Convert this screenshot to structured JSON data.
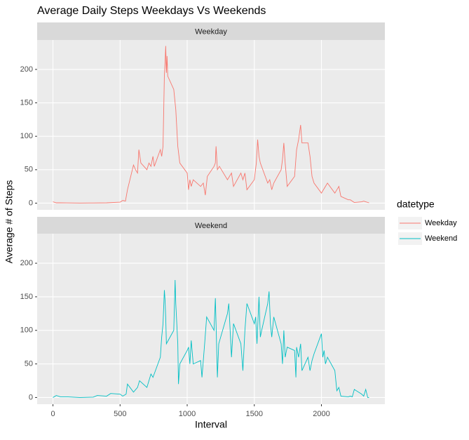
{
  "chart_data": {
    "type": "line",
    "title": "Average Daily Steps Weekdays Vs Weekends",
    "x_label": "Interval",
    "y_label": "Average # of Steps",
    "legend_title": "datetype",
    "xlim": [
      -117.75,
      2472.75
    ],
    "xticks": [
      0,
      500,
      1000,
      1500,
      2000
    ],
    "ylim": [
      -10,
      244
    ],
    "yticks": [
      0,
      50,
      100,
      150,
      200
    ],
    "grid": true,
    "facet": "series",
    "series": [
      {
        "name": "Weekday",
        "color": "#F8766D",
        "x": [
          0,
          25,
          55,
          100,
          200,
          300,
          400,
          500,
          520,
          540,
          555,
          600,
          615,
          630,
          640,
          655,
          700,
          715,
          730,
          745,
          755,
          800,
          810,
          820,
          830,
          835,
          840,
          845,
          850,
          855,
          900,
          915,
          930,
          945,
          1000,
          1010,
          1020,
          1030,
          1045,
          1100,
          1120,
          1135,
          1150,
          1200,
          1210,
          1215,
          1225,
          1240,
          1300,
          1315,
          1330,
          1345,
          1400,
          1415,
          1430,
          1445,
          1500,
          1515,
          1525,
          1535,
          1545,
          1600,
          1615,
          1630,
          1645,
          1700,
          1710,
          1720,
          1730,
          1745,
          1800,
          1815,
          1830,
          1845,
          1855,
          1900,
          1915,
          1930,
          1945,
          2000,
          2015,
          2030,
          2045,
          2100,
          2115,
          2130,
          2145,
          2200,
          2215,
          2230,
          2245,
          2300,
          2315,
          2330,
          2355
        ],
        "values": [
          2,
          0.5,
          0.5,
          0.4,
          0.2,
          0.3,
          0.5,
          1.5,
          4,
          3,
          20,
          57,
          50,
          45,
          80,
          60,
          50,
          60,
          55,
          70,
          55,
          80,
          70,
          85,
          190,
          210,
          235,
          195,
          220,
          190,
          170,
          140,
          85,
          60,
          45,
          20,
          35,
          25,
          35,
          25,
          30,
          12,
          40,
          55,
          60,
          85,
          50,
          55,
          35,
          40,
          45,
          25,
          45,
          35,
          45,
          20,
          35,
          60,
          95,
          70,
          60,
          30,
          35,
          20,
          30,
          50,
          65,
          90,
          60,
          25,
          40,
          80,
          95,
          117,
          90,
          90,
          70,
          40,
          30,
          15,
          20,
          25,
          30,
          15,
          20,
          25,
          10,
          5,
          5,
          3,
          1,
          2,
          3,
          2,
          0.5
        ]
      },
      {
        "name": "Weekend",
        "color": "#00BFC4",
        "x": [
          0,
          25,
          55,
          100,
          200,
          300,
          330,
          400,
          430,
          500,
          520,
          545,
          555,
          600,
          630,
          645,
          700,
          715,
          730,
          745,
          800,
          810,
          820,
          830,
          835,
          840,
          845,
          900,
          910,
          915,
          930,
          935,
          945,
          1000,
          1010,
          1020,
          1030,
          1045,
          1100,
          1110,
          1130,
          1145,
          1200,
          1210,
          1215,
          1225,
          1235,
          1300,
          1310,
          1320,
          1330,
          1345,
          1400,
          1415,
          1430,
          1445,
          1500,
          1510,
          1520,
          1535,
          1545,
          1555,
          1600,
          1610,
          1620,
          1630,
          1645,
          1700,
          1710,
          1720,
          1730,
          1745,
          1800,
          1810,
          1815,
          1830,
          1845,
          1855,
          1900,
          1915,
          1930,
          1945,
          2000,
          2010,
          2020,
          2030,
          2045,
          2100,
          2110,
          2115,
          2130,
          2145,
          2200,
          2215,
          2230,
          2245,
          2300,
          2315,
          2330,
          2345,
          2355
        ],
        "values": [
          0,
          3,
          1,
          1,
          0,
          0.5,
          3,
          2,
          6,
          5,
          2,
          5,
          20,
          8,
          15,
          25,
          15,
          25,
          35,
          30,
          60,
          90,
          110,
          160,
          145,
          120,
          80,
          100,
          175,
          140,
          80,
          20,
          50,
          70,
          75,
          50,
          85,
          50,
          55,
          30,
          80,
          120,
          100,
          148,
          110,
          30,
          80,
          125,
          140,
          100,
          60,
          110,
          80,
          40,
          100,
          140,
          110,
          120,
          80,
          150,
          90,
          100,
          140,
          158,
          110,
          90,
          120,
          80,
          50,
          100,
          60,
          75,
          70,
          30,
          75,
          60,
          80,
          40,
          60,
          40,
          55,
          65,
          95,
          60,
          70,
          50,
          60,
          40,
          20,
          10,
          15,
          2,
          1,
          2,
          1,
          12,
          5,
          2,
          12,
          0,
          0
        ]
      }
    ]
  }
}
